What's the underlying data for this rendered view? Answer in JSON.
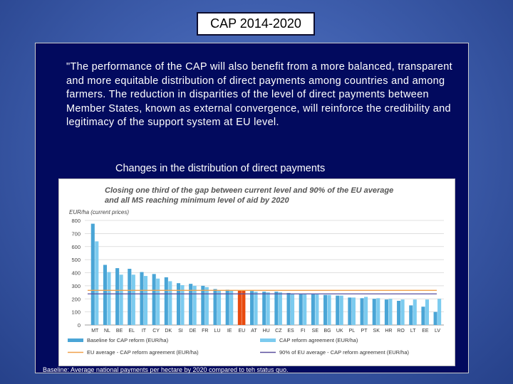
{
  "slide": {
    "title": "CAP 2014-2020",
    "quote": "\"The performance of the CAP will also benefit from a more balanced, transparent and more equitable distribution of direct payments among countries and among farmers. The reduction in disparities of the level of direct payments between Member States, known as external convergence, will reinforce the credibility and legitimacy of the support system at EU level.",
    "subtitle": "Changes in the distribution of direct payments",
    "footnote": "Baseline: Average national payments per hectare by 2020 compared to teh status quo."
  },
  "chart_data": {
    "type": "bar",
    "title": "Closing one third of the gap between current level and 90% of the EU average",
    "subtitle": "and all MS reaching minimum level of aid by 2020",
    "ylabel": "EUR/ha (current prices)",
    "ylim": [
      0,
      800
    ],
    "yticks": [
      0,
      100,
      200,
      300,
      400,
      500,
      600,
      700,
      800
    ],
    "grid": true,
    "legend_position": "bottom",
    "categories": [
      "MT",
      "NL",
      "BE",
      "EL",
      "IT",
      "CY",
      "DK",
      "SI",
      "DE",
      "FR",
      "LU",
      "IE",
      "EU",
      "AT",
      "HU",
      "CZ",
      "ES",
      "FI",
      "SE",
      "BG",
      "UK",
      "PL",
      "PT",
      "SK",
      "HR",
      "RO",
      "LT",
      "EE",
      "LV"
    ],
    "series": [
      {
        "name": "Baseline for CAP reform (EUR/ha)",
        "color": "#4aa5d6",
        "values": [
          775,
          460,
          435,
          430,
          405,
          390,
          365,
          320,
          315,
          300,
          275,
          270,
          265,
          260,
          255,
          255,
          245,
          235,
          235,
          230,
          225,
          210,
          205,
          200,
          195,
          185,
          150,
          140,
          100
        ]
      },
      {
        "name": "CAP reform agreement (EUR/ha)",
        "color": "#7ccbef",
        "values": [
          640,
          405,
          385,
          385,
          375,
          355,
          335,
          305,
          300,
          290,
          265,
          265,
          265,
          255,
          250,
          250,
          240,
          235,
          235,
          230,
          225,
          210,
          215,
          205,
          200,
          195,
          195,
          195,
          200
        ]
      }
    ],
    "highlight": {
      "category": "EU",
      "color": "#e84a0e"
    },
    "reference_lines": [
      {
        "name": "EU average - CAP reform agreement (EUR/ha)",
        "value": 265,
        "color": "#f0a04a"
      },
      {
        "name": "90% of EU average - CAP reform agreement (EUR/ha)",
        "value": 238,
        "color": "#5a4f9e"
      }
    ]
  }
}
